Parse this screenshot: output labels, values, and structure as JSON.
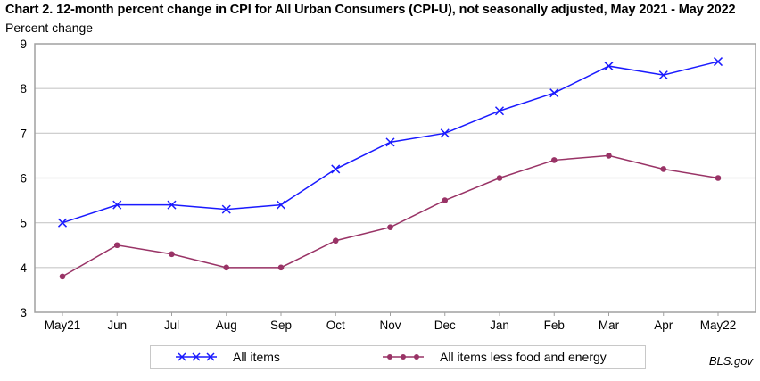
{
  "chart_data": {
    "type": "line",
    "title": "Chart 2. 12-month percent change in CPI for All Urban Consumers (CPI-U), not seasonally adjusted, May 2021 - May 2022",
    "ylabel": "Percent change",
    "xlabel": "",
    "categories": [
      "May21",
      "Jun",
      "Jul",
      "Aug",
      "Sep",
      "Oct",
      "Nov",
      "Dec",
      "Jan",
      "Feb",
      "Mar",
      "Apr",
      "May22"
    ],
    "ylim": [
      3,
      9
    ],
    "yticks": [
      "3",
      "4",
      "5",
      "6",
      "7",
      "8",
      "9"
    ],
    "grid": true,
    "legend_position": "bottom",
    "series": [
      {
        "name": "All items",
        "color": "#1a1aff",
        "marker": "x",
        "values": [
          5.0,
          5.4,
          5.4,
          5.3,
          5.4,
          6.2,
          6.8,
          7.0,
          7.5,
          7.9,
          8.5,
          8.3,
          8.6
        ]
      },
      {
        "name": "All items less food and energy",
        "color": "#993366",
        "marker": "dot",
        "values": [
          3.8,
          4.5,
          4.3,
          4.0,
          4.0,
          4.6,
          4.9,
          5.5,
          6.0,
          6.4,
          6.5,
          6.2,
          6.0
        ]
      }
    ],
    "source": "BLS.gov"
  }
}
